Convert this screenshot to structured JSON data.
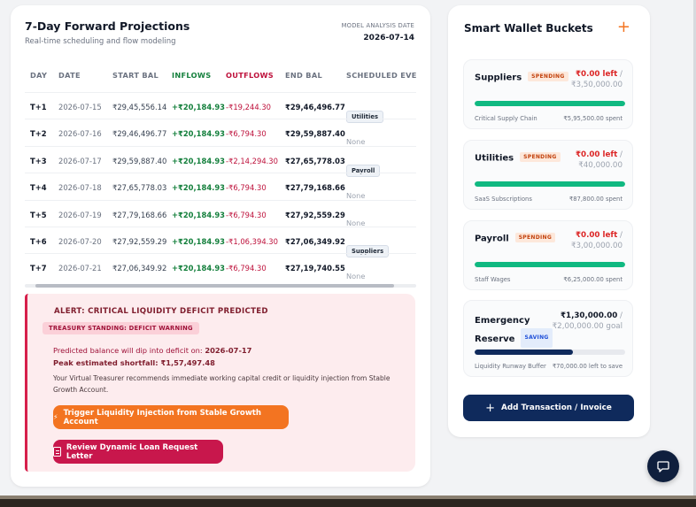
{
  "projections": {
    "title": "7-Day Forward Projections",
    "subtitle": "Real-time scheduling and flow modeling",
    "model_label": "MODEL ANALYSIS DATE",
    "model_date": "2026-07-14",
    "columns": [
      "DAY",
      "DATE",
      "START BAL",
      "INFLOWS",
      "OUTFLOWS",
      "END BAL",
      "SCHEDULED EVE"
    ],
    "rows": [
      {
        "day": "T+1",
        "date": "2026-07-15",
        "start": "₹29,45,556.14",
        "inflow": "+₹20,184.93",
        "outflow": "-₹19,244.30",
        "end": "₹29,46,496.77",
        "event": "Utilities"
      },
      {
        "day": "T+2",
        "date": "2026-07-16",
        "start": "₹29,46,496.77",
        "inflow": "+₹20,184.93",
        "outflow": "-₹6,794.30",
        "end": "₹29,59,887.40",
        "event": "None"
      },
      {
        "day": "T+3",
        "date": "2026-07-17",
        "start": "₹29,59,887.40",
        "inflow": "+₹20,184.93",
        "outflow": "-₹2,14,294.30",
        "end": "₹27,65,778.03",
        "event": "Payroll"
      },
      {
        "day": "T+4",
        "date": "2026-07-18",
        "start": "₹27,65,778.03",
        "inflow": "+₹20,184.93",
        "outflow": "-₹6,794.30",
        "end": "₹27,79,168.66",
        "event": "None"
      },
      {
        "day": "T+5",
        "date": "2026-07-19",
        "start": "₹27,79,168.66",
        "inflow": "+₹20,184.93",
        "outflow": "-₹6,794.30",
        "end": "₹27,92,559.29",
        "event": "None"
      },
      {
        "day": "T+6",
        "date": "2026-07-20",
        "start": "₹27,92,559.29",
        "inflow": "+₹20,184.93",
        "outflow": "-₹1,06,394.30",
        "end": "₹27,06,349.92",
        "event": "Suppliers"
      },
      {
        "day": "T+7",
        "date": "2026-07-21",
        "start": "₹27,06,349.92",
        "inflow": "+₹20,184.93",
        "outflow": "-₹6,794.30",
        "end": "₹27,19,740.55",
        "event": "None"
      }
    ]
  },
  "alert": {
    "title": "ALERT: CRITICAL LIQUIDITY DEFICIT PREDICTED",
    "badge": "TREASURY STANDING: DEFICIT WARNING",
    "deficit_prefix": "Predicted balance will dip into deficit on: ",
    "deficit_date": "2026-07-17",
    "shortfall": "Peak estimated shortfall: ₹1,57,497.48",
    "description": "Your Virtual Treasurer recommends immediate working capital credit or liquidity injection from Stable Growth Account.",
    "trigger_label": "Trigger Liquidity Injection from Stable Growth Account",
    "review_label": "Review Dynamic Loan Request Letter"
  },
  "wallet": {
    "title": "Smart Wallet Buckets",
    "add_icon": "+",
    "buckets": [
      {
        "name": "Suppliers",
        "tag": "SPENDING",
        "left": "₹0.00 left",
        "total": "₹3,50,000.00",
        "fill": 1.0,
        "sub": "Critical Supply Chain",
        "spent": "₹5,95,500.00 spent"
      },
      {
        "name": "Utilities",
        "tag": "SPENDING",
        "left": "₹0.00 left",
        "total": "₹40,000.00",
        "fill": 1.0,
        "sub": "SaaS Subscriptions",
        "spent": "₹87,800.00 spent"
      },
      {
        "name": "Payroll",
        "tag": "SPENDING",
        "left": "₹0.00 left",
        "total": "₹3,00,000.00",
        "fill": 1.0,
        "sub": "Staff Wages",
        "spent": "₹6,25,000.00 spent"
      }
    ],
    "emergency": {
      "name_line1": "Emergency",
      "name_line2": "Reserve",
      "tag": "SAVING",
      "amount": "₹1,30,000.00",
      "goal": "₹2,00,000.00 goal",
      "fill": 0.65,
      "sub": "Liquidity Runway Buffer",
      "remaining": "₹70,000.00 left to save"
    },
    "add_button": "Add Transaction / Invoice"
  },
  "colors": {
    "accent_orange": "#f37421",
    "navy": "#0f2a5c",
    "green": "#10b981",
    "danger": "#c8174c"
  }
}
